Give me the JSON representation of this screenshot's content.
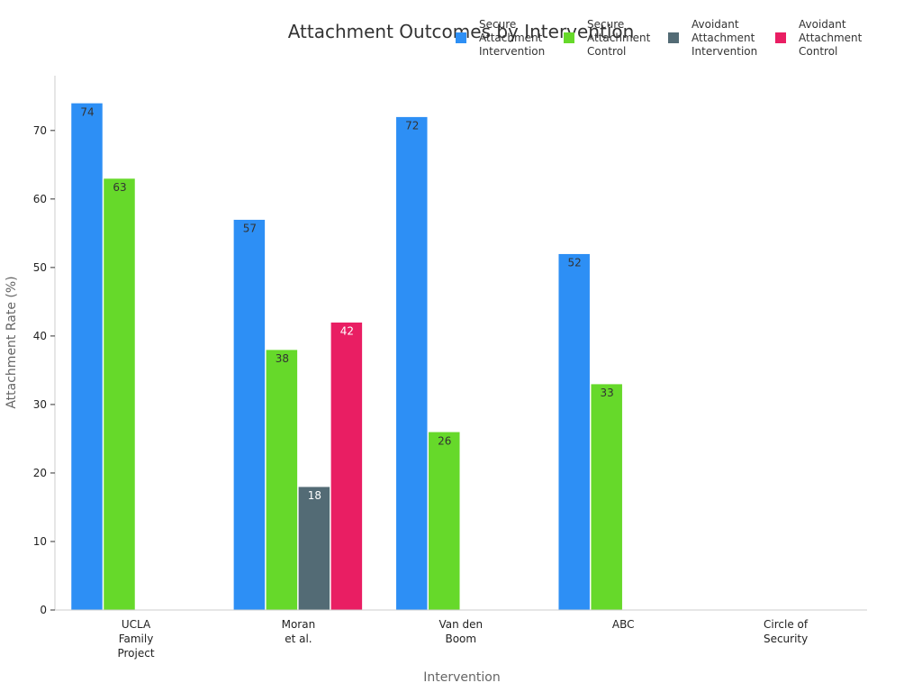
{
  "chart_data": {
    "type": "bar",
    "title": "Attachment Outcomes by Intervention",
    "xlabel": "Intervention",
    "ylabel": "Attachment Rate (%)",
    "ylim": [
      0,
      78
    ],
    "yticks": [
      0,
      10,
      20,
      30,
      40,
      50,
      60,
      70
    ],
    "categories": [
      [
        "UCLA",
        "Family",
        "Project"
      ],
      [
        "Moran",
        "et al."
      ],
      [
        "Van den",
        "Boom"
      ],
      [
        "ABC"
      ],
      [
        "Circle of",
        "Security"
      ]
    ],
    "series": [
      {
        "name": [
          "Secure",
          "Attachment",
          "Intervention"
        ],
        "color": "#2d8ff5",
        "label_color": "#333333",
        "values": [
          74,
          57,
          72,
          52,
          null
        ]
      },
      {
        "name": [
          "Secure",
          "Attachment",
          "Control"
        ],
        "color": "#66d92a",
        "label_color": "#333333",
        "values": [
          63,
          38,
          26,
          33,
          null
        ]
      },
      {
        "name": [
          "Avoidant",
          "Attachment",
          "Intervention"
        ],
        "color": "#536b75",
        "label_color": "#ffffff",
        "values": [
          null,
          18,
          null,
          null,
          null
        ]
      },
      {
        "name": [
          "Avoidant",
          "Attachment",
          "Control"
        ],
        "color": "#e91e63",
        "label_color": "#ffffff",
        "values": [
          null,
          42,
          null,
          null,
          null
        ]
      }
    ],
    "legend_position": "top-right",
    "grid": false
  }
}
